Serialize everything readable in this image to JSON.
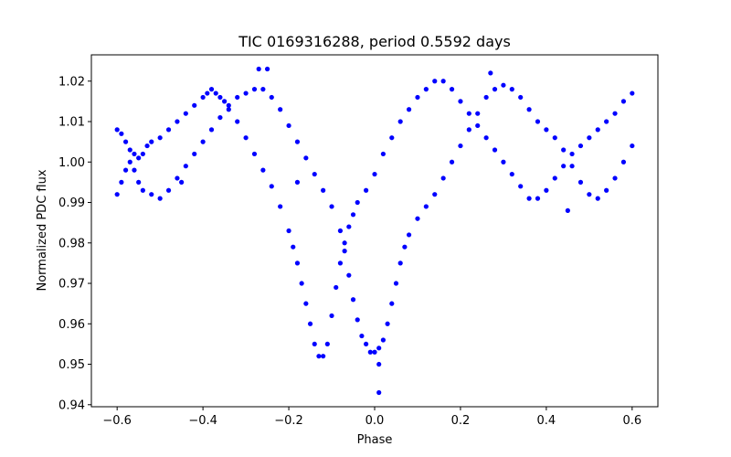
{
  "chart_data": {
    "type": "scatter",
    "title": "TIC 0169316288, period 0.5592 days",
    "xlabel": "Phase",
    "ylabel": "Normalized PDC flux",
    "xlim": [
      -0.66,
      0.66
    ],
    "ylim": [
      0.9395,
      1.0265
    ],
    "xticks": [
      -0.6,
      -0.4,
      -0.2,
      0.0,
      0.2,
      0.4,
      0.6
    ],
    "xtick_labels": [
      "−0.6",
      "−0.4",
      "−0.2",
      "0.0",
      "0.2",
      "0.4",
      "0.6"
    ],
    "yticks": [
      0.94,
      0.95,
      0.96,
      0.97,
      0.98,
      0.99,
      1.0,
      1.01,
      1.02
    ],
    "ytick_labels": [
      "0.94",
      "0.95",
      "0.96",
      "0.97",
      "0.98",
      "0.99",
      "1.00",
      "1.01",
      "1.02"
    ],
    "grid": false,
    "marker_color": "#0000ff",
    "series": [
      {
        "points": [
          [
            -0.6,
            1.008
          ],
          [
            -0.59,
            1.007
          ],
          [
            -0.58,
            1.005
          ],
          [
            -0.57,
            1.003
          ],
          [
            -0.56,
            1.002
          ],
          [
            -0.55,
            1.001
          ],
          [
            -0.54,
            1.002
          ],
          [
            -0.53,
            1.004
          ],
          [
            -0.52,
            1.005
          ],
          [
            -0.5,
            1.006
          ],
          [
            -0.48,
            1.008
          ],
          [
            -0.46,
            1.01
          ],
          [
            -0.44,
            1.012
          ],
          [
            -0.42,
            1.014
          ],
          [
            -0.4,
            1.016
          ],
          [
            -0.39,
            1.017
          ],
          [
            -0.38,
            1.018
          ],
          [
            -0.37,
            1.017
          ],
          [
            -0.36,
            1.016
          ],
          [
            -0.35,
            1.015
          ],
          [
            -0.34,
            1.013
          ],
          [
            -0.32,
            1.01
          ],
          [
            -0.3,
            1.006
          ],
          [
            -0.28,
            1.002
          ],
          [
            -0.26,
            0.998
          ],
          [
            -0.24,
            0.994
          ],
          [
            -0.22,
            0.989
          ],
          [
            -0.2,
            0.983
          ],
          [
            -0.19,
            0.979
          ],
          [
            -0.18,
            0.975
          ],
          [
            -0.17,
            0.97
          ],
          [
            -0.16,
            0.965
          ],
          [
            -0.15,
            0.96
          ],
          [
            -0.14,
            0.955
          ],
          [
            -0.13,
            0.952
          ],
          [
            -0.12,
            0.952
          ],
          [
            -0.11,
            0.955
          ],
          [
            -0.1,
            0.962
          ],
          [
            -0.09,
            0.969
          ],
          [
            -0.08,
            0.975
          ],
          [
            -0.07,
            0.98
          ],
          [
            -0.06,
            0.984
          ],
          [
            -0.05,
            0.987
          ],
          [
            -0.04,
            0.99
          ],
          [
            -0.02,
            0.993
          ],
          [
            0.0,
            0.997
          ],
          [
            0.02,
            1.002
          ],
          [
            0.04,
            1.006
          ],
          [
            0.06,
            1.01
          ],
          [
            0.08,
            1.013
          ],
          [
            0.1,
            1.016
          ],
          [
            0.12,
            1.018
          ],
          [
            0.14,
            1.02
          ],
          [
            0.16,
            1.02
          ],
          [
            0.18,
            1.018
          ],
          [
            0.2,
            1.015
          ],
          [
            0.22,
            1.012
          ],
          [
            0.24,
            1.009
          ],
          [
            0.26,
            1.006
          ],
          [
            0.28,
            1.003
          ],
          [
            0.3,
            1.0
          ],
          [
            0.32,
            0.997
          ],
          [
            0.34,
            0.994
          ],
          [
            0.36,
            0.991
          ],
          [
            0.38,
            0.991
          ],
          [
            0.4,
            0.993
          ],
          [
            0.42,
            0.996
          ],
          [
            0.44,
            0.999
          ],
          [
            0.46,
            1.002
          ],
          [
            0.48,
            1.004
          ],
          [
            0.5,
            1.006
          ],
          [
            0.52,
            1.008
          ],
          [
            0.54,
            1.01
          ],
          [
            0.56,
            1.012
          ],
          [
            0.58,
            1.015
          ],
          [
            0.6,
            1.017
          ],
          [
            -0.6,
            0.992
          ],
          [
            -0.59,
            0.995
          ],
          [
            -0.58,
            0.998
          ],
          [
            -0.57,
            1.0
          ],
          [
            -0.56,
            0.998
          ],
          [
            -0.55,
            0.995
          ],
          [
            -0.54,
            0.993
          ],
          [
            -0.52,
            0.992
          ],
          [
            -0.5,
            0.991
          ],
          [
            -0.48,
            0.993
          ],
          [
            -0.46,
            0.996
          ],
          [
            -0.44,
            0.999
          ],
          [
            -0.42,
            1.002
          ],
          [
            -0.4,
            1.005
          ],
          [
            -0.38,
            1.008
          ],
          [
            -0.36,
            1.011
          ],
          [
            -0.34,
            1.014
          ],
          [
            -0.32,
            1.016
          ],
          [
            -0.3,
            1.017
          ],
          [
            -0.28,
            1.018
          ],
          [
            -0.26,
            1.018
          ],
          [
            -0.24,
            1.016
          ],
          [
            -0.22,
            1.013
          ],
          [
            -0.2,
            1.009
          ],
          [
            -0.18,
            1.005
          ],
          [
            -0.16,
            1.001
          ],
          [
            -0.14,
            0.997
          ],
          [
            -0.12,
            0.993
          ],
          [
            -0.1,
            0.989
          ],
          [
            -0.08,
            0.983
          ],
          [
            -0.07,
            0.978
          ],
          [
            -0.06,
            0.972
          ],
          [
            -0.05,
            0.966
          ],
          [
            -0.04,
            0.961
          ],
          [
            -0.03,
            0.957
          ],
          [
            -0.02,
            0.955
          ],
          [
            -0.01,
            0.953
          ],
          [
            0.0,
            0.953
          ],
          [
            0.01,
            0.954
          ],
          [
            0.02,
            0.956
          ],
          [
            0.03,
            0.96
          ],
          [
            0.04,
            0.965
          ],
          [
            0.05,
            0.97
          ],
          [
            0.06,
            0.975
          ],
          [
            0.07,
            0.979
          ],
          [
            0.08,
            0.982
          ],
          [
            0.1,
            0.986
          ],
          [
            0.12,
            0.989
          ],
          [
            0.14,
            0.992
          ],
          [
            0.16,
            0.996
          ],
          [
            0.18,
            1.0
          ],
          [
            0.2,
            1.004
          ],
          [
            0.22,
            1.008
          ],
          [
            0.24,
            1.012
          ],
          [
            0.26,
            1.016
          ],
          [
            0.28,
            1.018
          ],
          [
            0.3,
            1.019
          ],
          [
            0.32,
            1.018
          ],
          [
            0.34,
            1.016
          ],
          [
            0.36,
            1.013
          ],
          [
            0.38,
            1.01
          ],
          [
            0.4,
            1.008
          ],
          [
            0.42,
            1.006
          ],
          [
            0.44,
            1.003
          ],
          [
            0.46,
            0.999
          ],
          [
            0.48,
            0.995
          ],
          [
            0.5,
            0.992
          ],
          [
            0.52,
            0.991
          ],
          [
            0.54,
            0.993
          ],
          [
            0.56,
            0.996
          ],
          [
            0.58,
            1.0
          ],
          [
            0.6,
            1.004
          ],
          [
            -0.27,
            1.023
          ],
          [
            -0.25,
            1.023
          ],
          [
            0.01,
            0.943
          ],
          [
            0.01,
            0.95
          ],
          [
            -0.18,
            0.995
          ],
          [
            0.27,
            1.022
          ],
          [
            0.45,
            0.988
          ],
          [
            -0.45,
            0.995
          ]
        ]
      }
    ]
  }
}
